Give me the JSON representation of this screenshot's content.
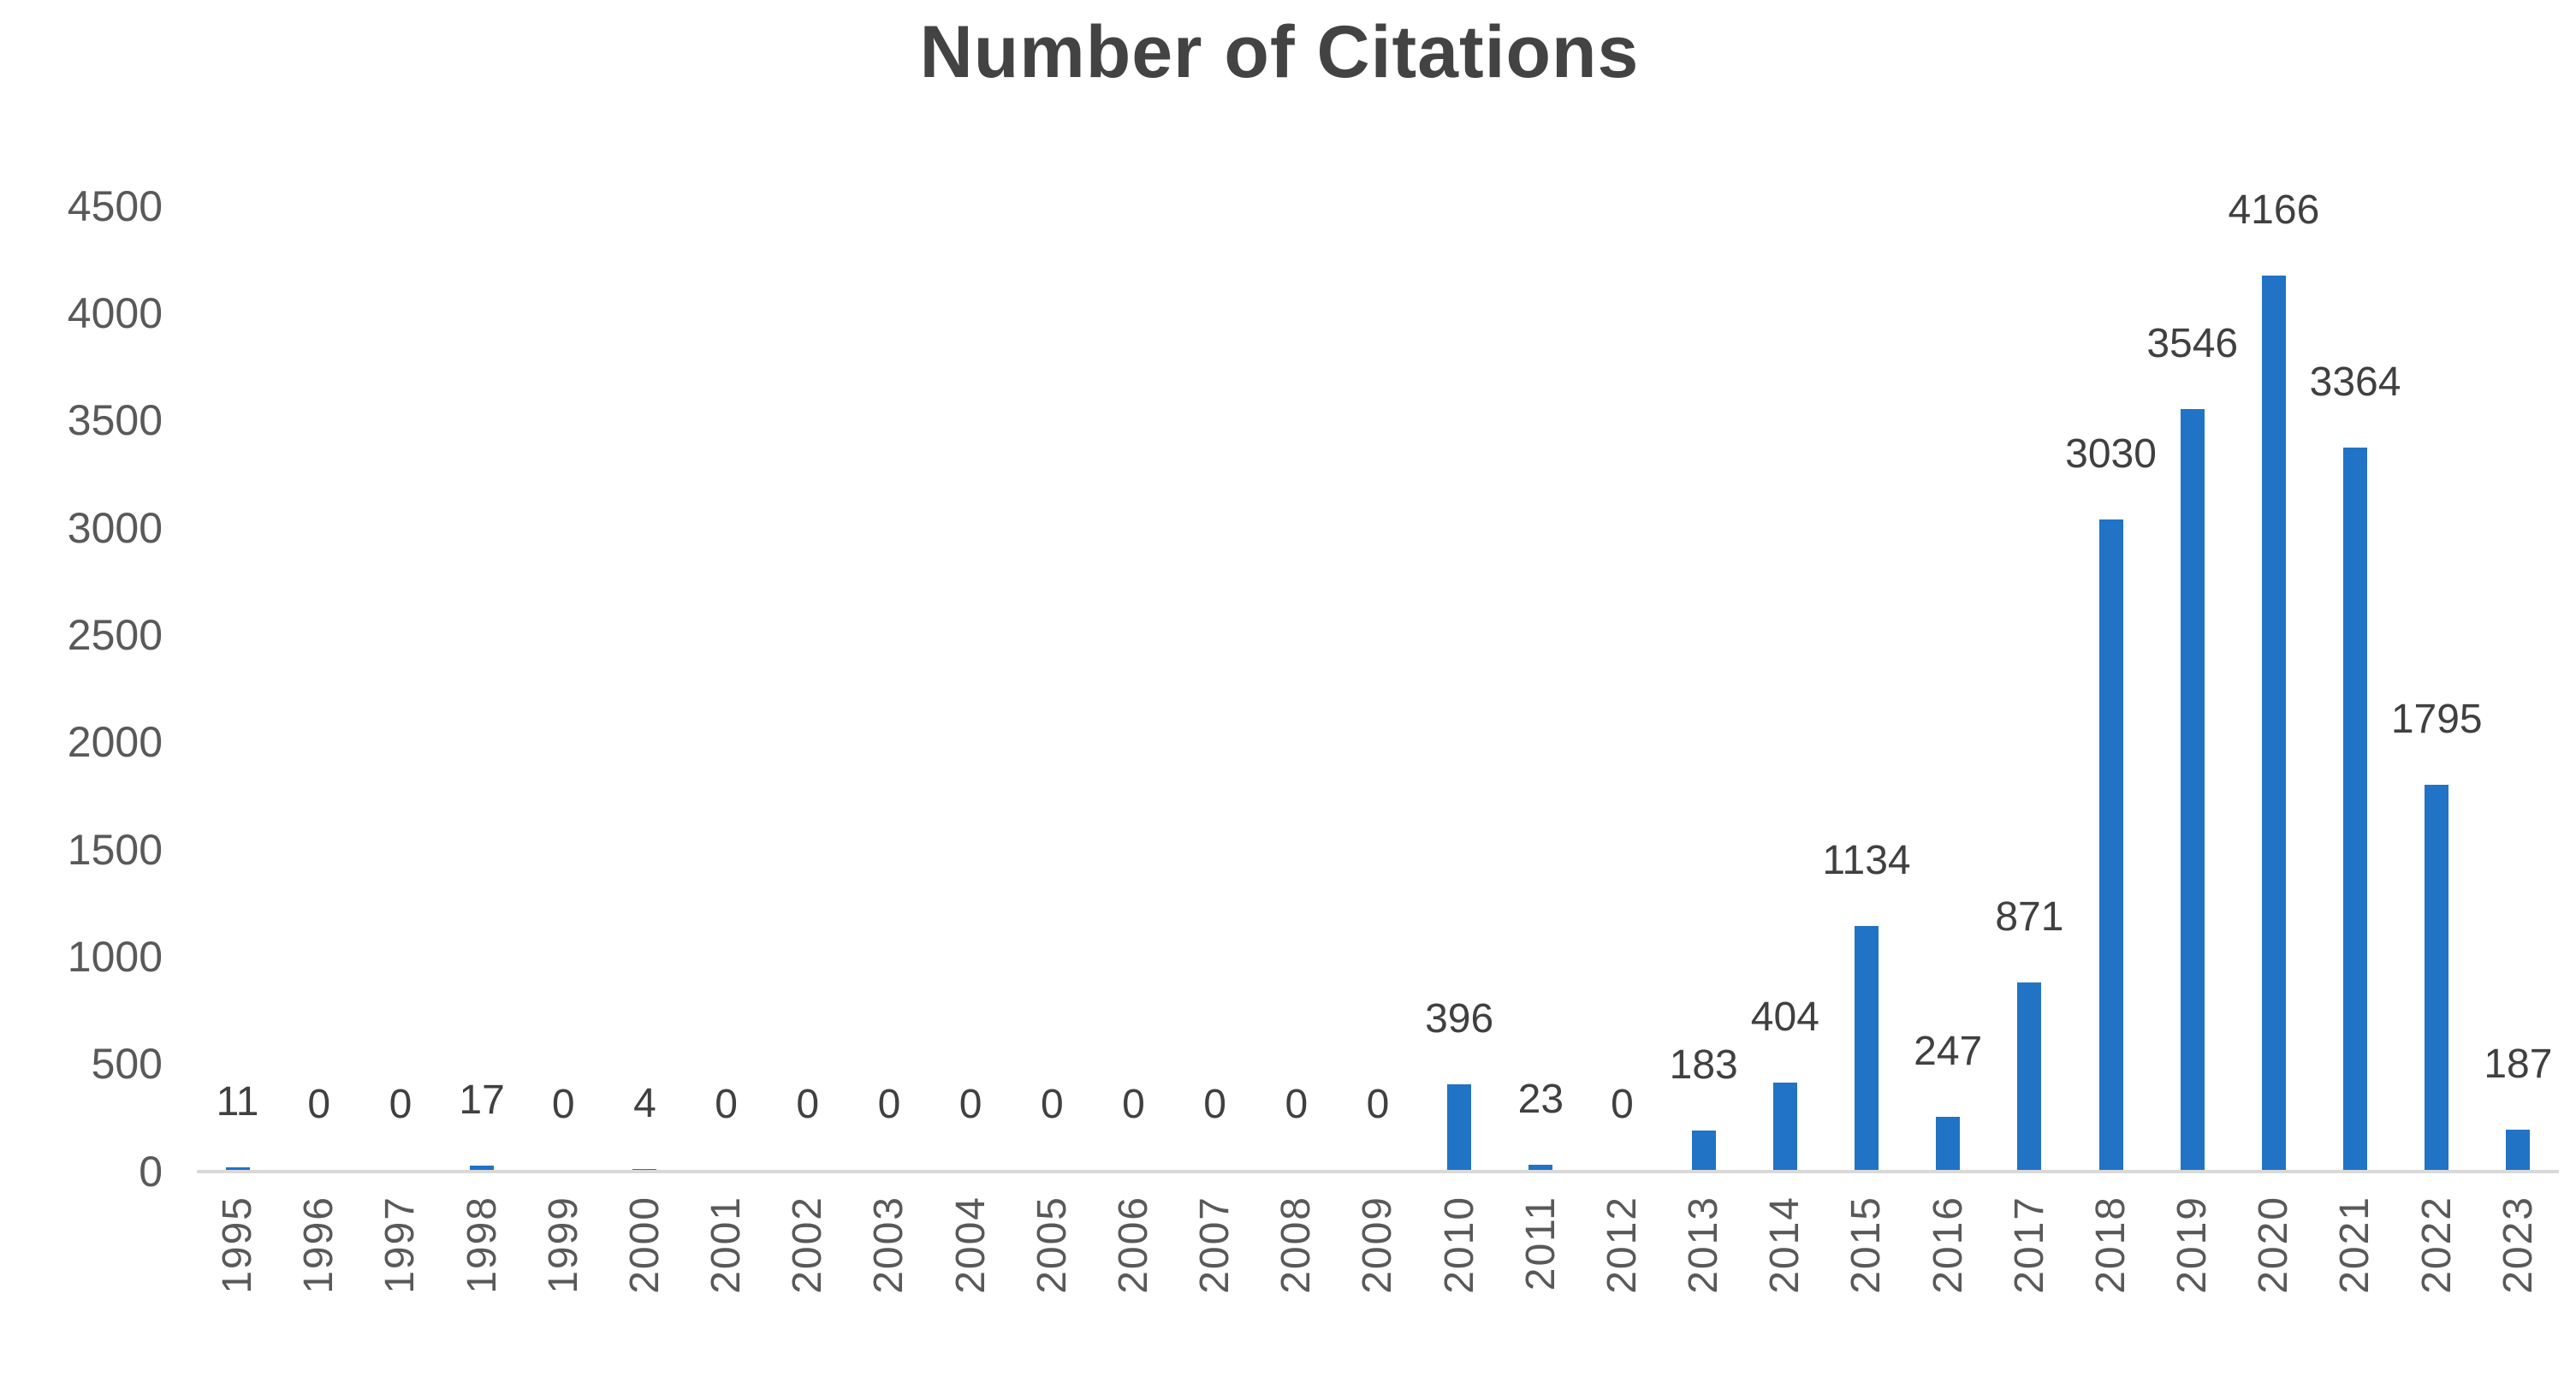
{
  "chart_data": {
    "type": "bar",
    "title": "Number of Citations",
    "categories": [
      "1995",
      "1996",
      "1997",
      "1998",
      "1999",
      "2000",
      "2001",
      "2002",
      "2003",
      "2004",
      "2005",
      "2006",
      "2007",
      "2008",
      "2009",
      "2010",
      "2011",
      "2012",
      "2013",
      "2014",
      "2015",
      "2016",
      "2017",
      "2018",
      "2019",
      "2020",
      "2021",
      "2022",
      "2023"
    ],
    "values": [
      11,
      0,
      0,
      17,
      0,
      4,
      0,
      0,
      0,
      0,
      0,
      0,
      0,
      0,
      0,
      396,
      23,
      0,
      183,
      404,
      1134,
      247,
      871,
      3030,
      3546,
      4166,
      3364,
      1795,
      187
    ],
    "xlabel": "",
    "ylabel": "",
    "ylim": [
      0,
      4500
    ],
    "ytick_step": 500,
    "yticks": [
      0,
      500,
      1000,
      1500,
      2000,
      2500,
      3000,
      3500,
      4000,
      4500
    ],
    "grid": false,
    "legend_position": "none",
    "data_labels": "outside-end",
    "colors": {
      "bar": "#2173C5",
      "title_text": "#434343",
      "data_label_text": "#404040",
      "axis_text": "#595959",
      "axis_line": "#D9D9D9",
      "background": "#FFFFFF"
    }
  }
}
